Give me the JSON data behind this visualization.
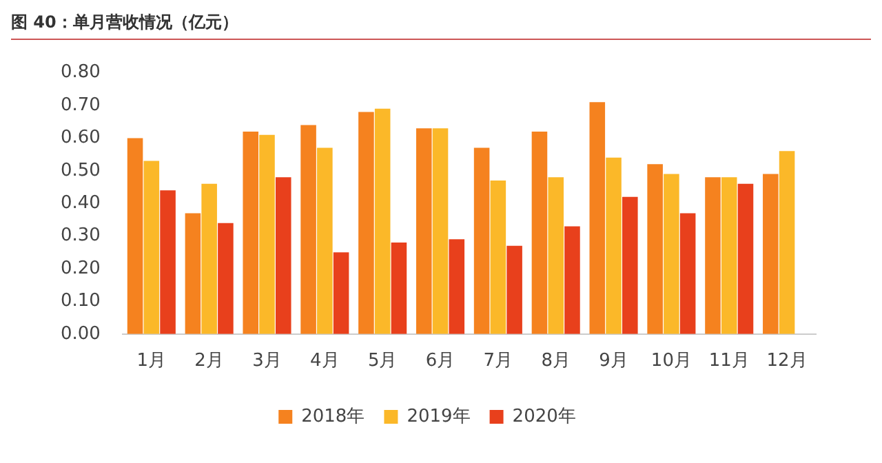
{
  "chart_data": {
    "type": "bar",
    "title": "图 40：单月营收情况（亿元）",
    "categories": [
      "1月",
      "2月",
      "3月",
      "4月",
      "5月",
      "6月",
      "7月",
      "8月",
      "9月",
      "10月",
      "11月",
      "12月"
    ],
    "series": [
      {
        "name": "2018年",
        "color": "#f5821f",
        "values": [
          0.6,
          0.37,
          0.62,
          0.64,
          0.68,
          0.63,
          0.57,
          0.62,
          0.71,
          0.52,
          0.48,
          0.49
        ]
      },
      {
        "name": "2019年",
        "color": "#fbb829",
        "values": [
          0.53,
          0.46,
          0.61,
          0.57,
          0.69,
          0.63,
          0.47,
          0.48,
          0.54,
          0.49,
          0.48,
          0.56
        ]
      },
      {
        "name": "2020年",
        "color": "#e8401c",
        "values": [
          0.44,
          0.34,
          0.48,
          0.25,
          0.28,
          0.29,
          0.27,
          0.33,
          0.42,
          0.37,
          0.46,
          null
        ]
      }
    ],
    "ylim": [
      0,
      0.8
    ],
    "yticks": [
      {
        "value": 0,
        "label": "0.00"
      },
      {
        "value": 0.1,
        "label": "0.10"
      },
      {
        "value": 0.2,
        "label": "0.20"
      },
      {
        "value": 0.3,
        "label": "0.30"
      },
      {
        "value": 0.4,
        "label": "0.40"
      },
      {
        "value": 0.5,
        "label": "0.50"
      },
      {
        "value": 0.6,
        "label": "0.60"
      },
      {
        "value": 0.7,
        "label": "0.70"
      },
      {
        "value": 0.8,
        "label": "0.80"
      }
    ],
    "grid": false,
    "legend": "bottom"
  }
}
